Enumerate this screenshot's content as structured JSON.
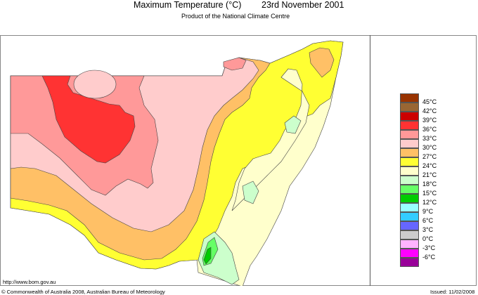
{
  "header": {
    "title": "Maximum Temperature (°C)",
    "date": "23rd November 2001",
    "subtitle": "Product of the National Climate Centre"
  },
  "footer": {
    "url": "http://www.bom.gov.au",
    "copyright": "© Commonwealth of Australia 2008, Australian Bureau of Meteorology",
    "issued": "Issued: 11/02/2008"
  },
  "map": {
    "region": "New South Wales",
    "variable": "Maximum Temperature",
    "hottest_band": "36–39°C (north-west interior)",
    "coolest_band": "12–15°C (south-east alpine area)"
  },
  "legend": {
    "swatches": [
      {
        "color": "#993300",
        "label": "45°C"
      },
      {
        "color": "#996633",
        "label": "42°C"
      },
      {
        "color": "#cc0000",
        "label": "39°C"
      },
      {
        "color": "#ff3333",
        "label": "36°C"
      },
      {
        "color": "#ff9999",
        "label": "33°C"
      },
      {
        "color": "#ffcccc",
        "label": "30°C"
      },
      {
        "color": "#ffc066",
        "label": "27°C"
      },
      {
        "color": "#ffff33",
        "label": "24°C"
      },
      {
        "color": "#ffffcc",
        "label": "21°C"
      },
      {
        "color": "#ccffcc",
        "label": "18°C"
      },
      {
        "color": "#66ff66",
        "label": "15°C"
      },
      {
        "color": "#00cc00",
        "label": "12°C"
      },
      {
        "color": "#99ffff",
        "label": "9°C"
      },
      {
        "color": "#33ccff",
        "label": "6°C"
      },
      {
        "color": "#6666ff",
        "label": "3°C"
      },
      {
        "color": "#cccccc",
        "label": "0°C"
      },
      {
        "color": "#ffb3ff",
        "label": "-3°C"
      },
      {
        "color": "#ff00ff",
        "label": "-6°C"
      },
      {
        "color": "#990099",
        "label": ""
      }
    ]
  }
}
